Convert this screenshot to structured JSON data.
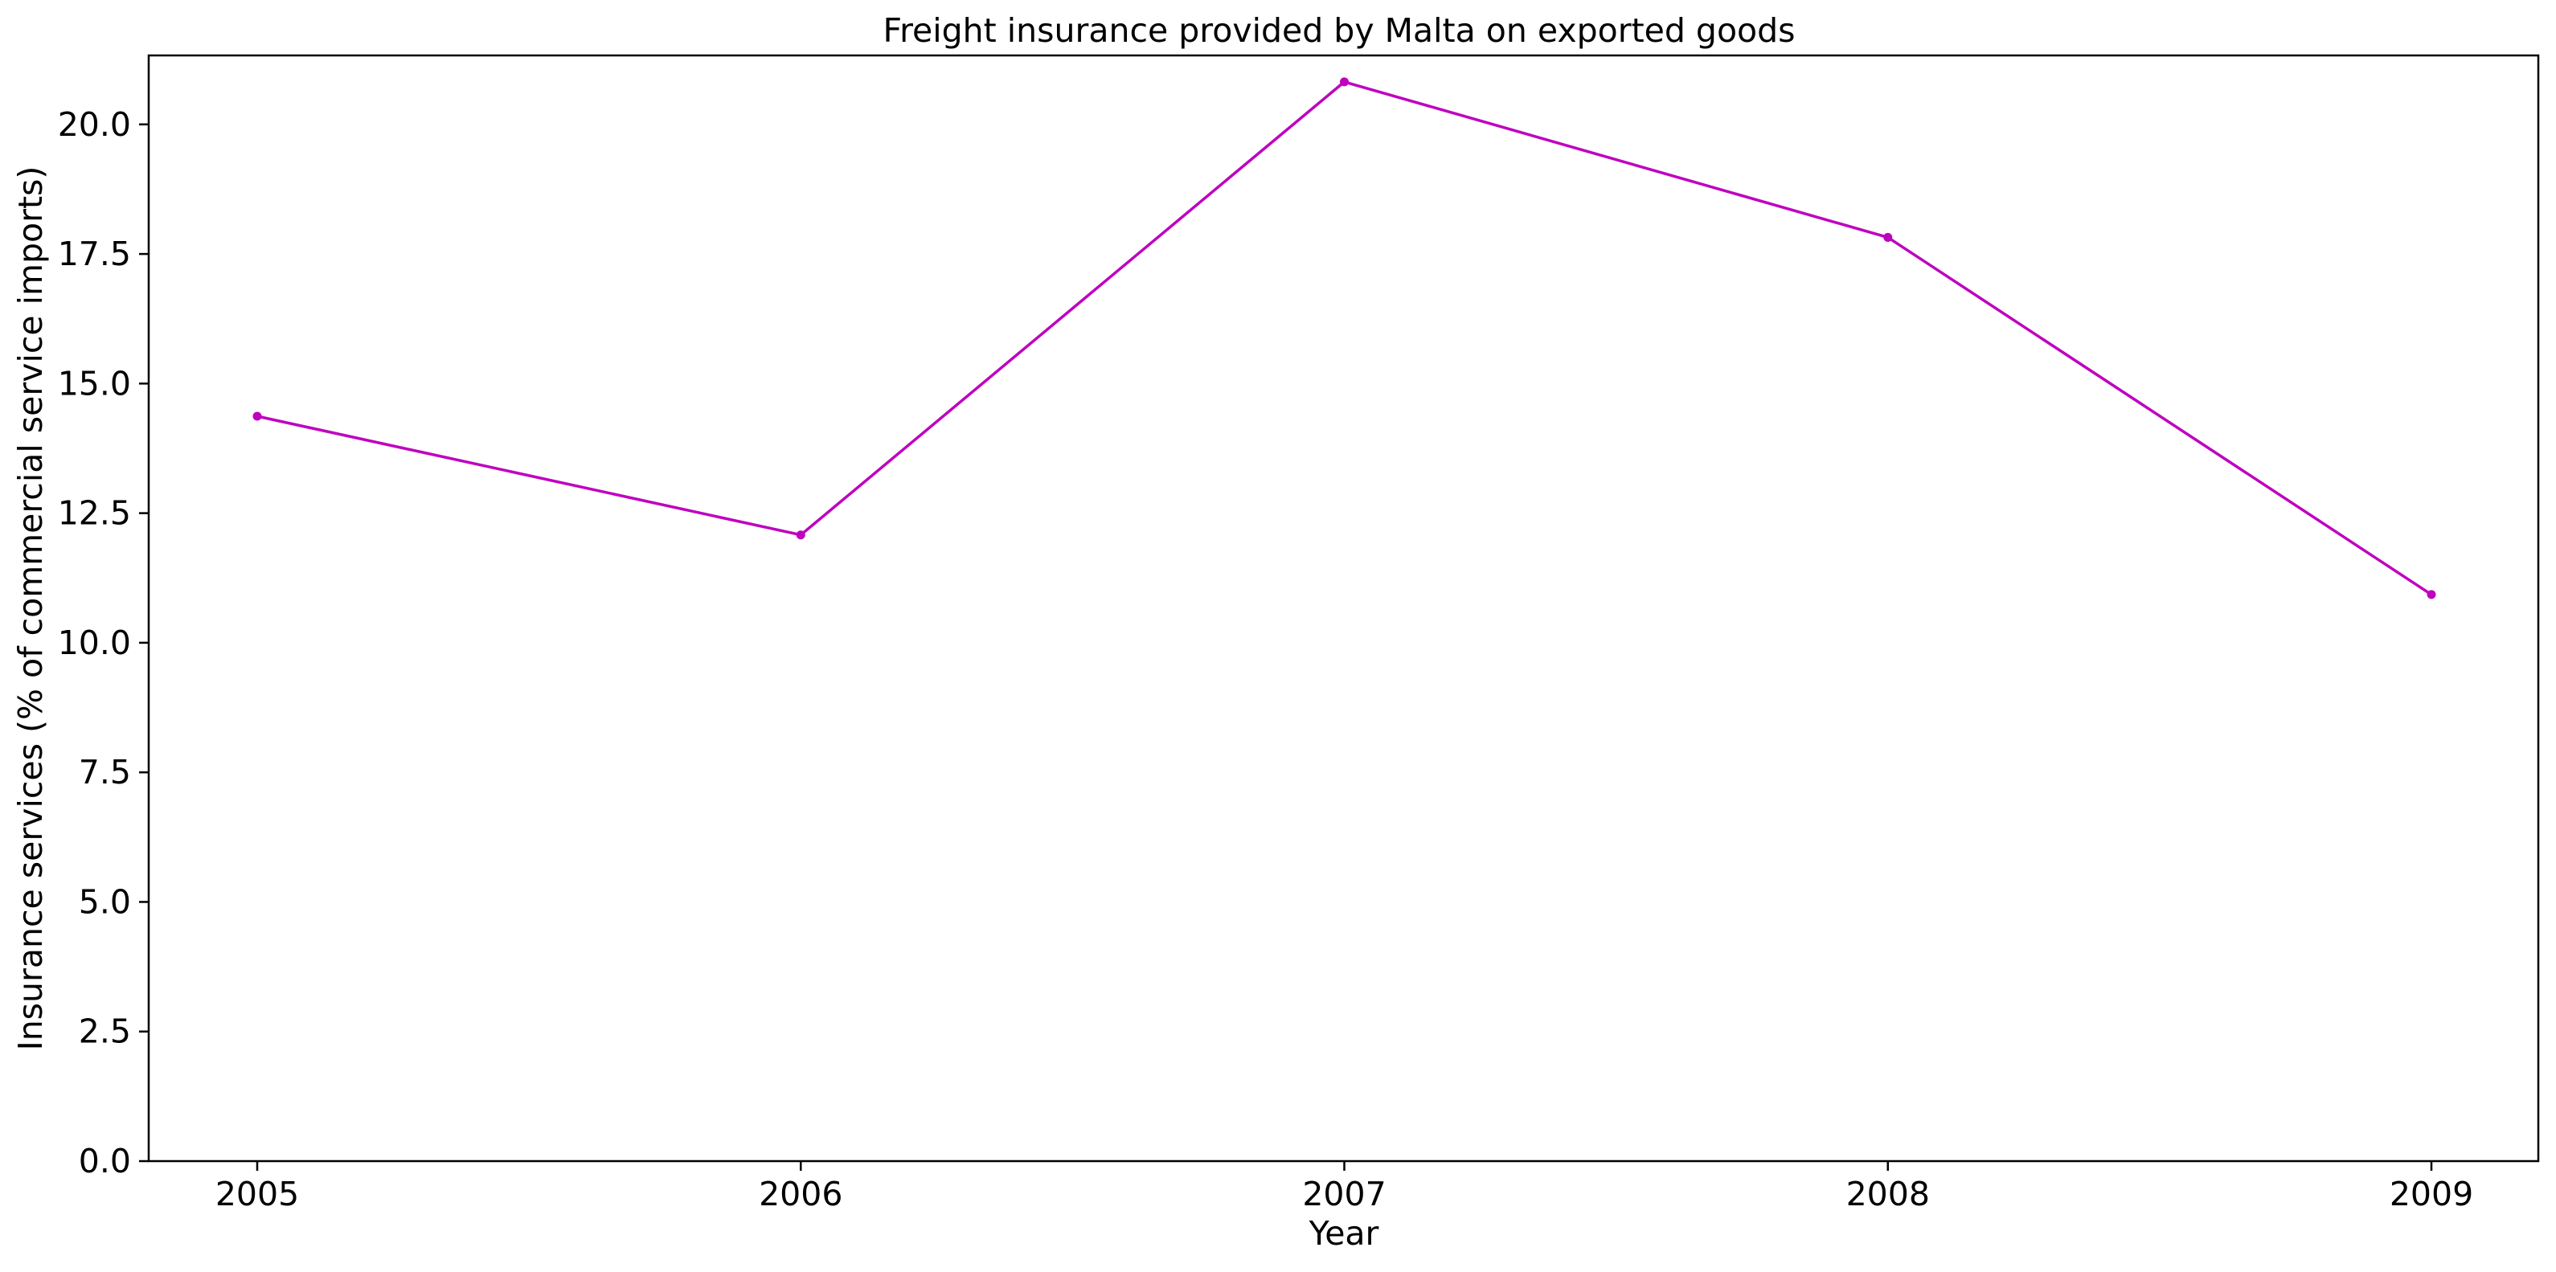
{
  "chart_data": {
    "type": "line",
    "title": "Freight insurance provided by Malta on exported goods",
    "xlabel": "Year",
    "ylabel": "Insurance services (% of commercial service imports)",
    "x": [
      "2005",
      "2006",
      "2007",
      "2008",
      "2009"
    ],
    "series": [
      {
        "values": [
          14.37,
          12.08,
          20.82,
          17.82,
          10.93
        ],
        "color": "#bf00bf",
        "marker": "circle"
      }
    ],
    "ylim": [
      0,
      21.33
    ],
    "yticks": [
      "0.0",
      "2.5",
      "5.0",
      "7.5",
      "10.0",
      "12.5",
      "15.0",
      "17.5",
      "20.0"
    ],
    "grid": false,
    "legend": "none"
  }
}
